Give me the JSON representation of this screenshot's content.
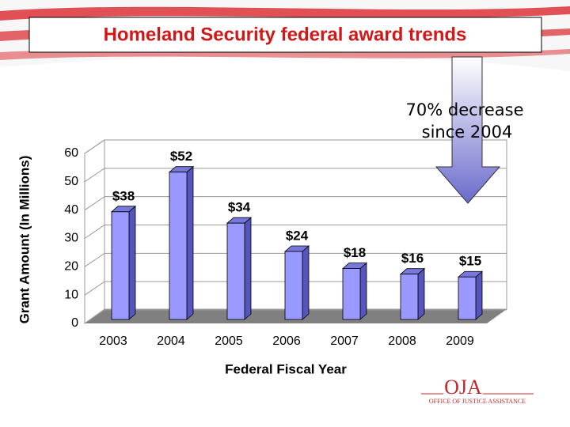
{
  "chart_data": {
    "type": "bar",
    "title": "Homeland Security federal award trends",
    "ylabel": "Grant Amount (In Millions)",
    "xlabel": "Federal Fiscal Year",
    "annotation": [
      "70% decrease",
      "since 2004"
    ],
    "categories": [
      "2003",
      "2004",
      "2005",
      "2006",
      "2007",
      "2008",
      "2009"
    ],
    "values": [
      38,
      52,
      34,
      24,
      18,
      16,
      15
    ],
    "value_labels": [
      "$38",
      "$52",
      "$34",
      "$24",
      "$18",
      "$16",
      "$15"
    ],
    "color": "#9999ff",
    "ylim": [
      0,
      60
    ],
    "yticks": [
      0,
      10,
      20,
      30,
      40,
      50,
      60
    ],
    "grid": true
  },
  "logo": {
    "abbr": "OJA",
    "name": "OFFICE OF JUSTICE ASSISTANCE"
  }
}
